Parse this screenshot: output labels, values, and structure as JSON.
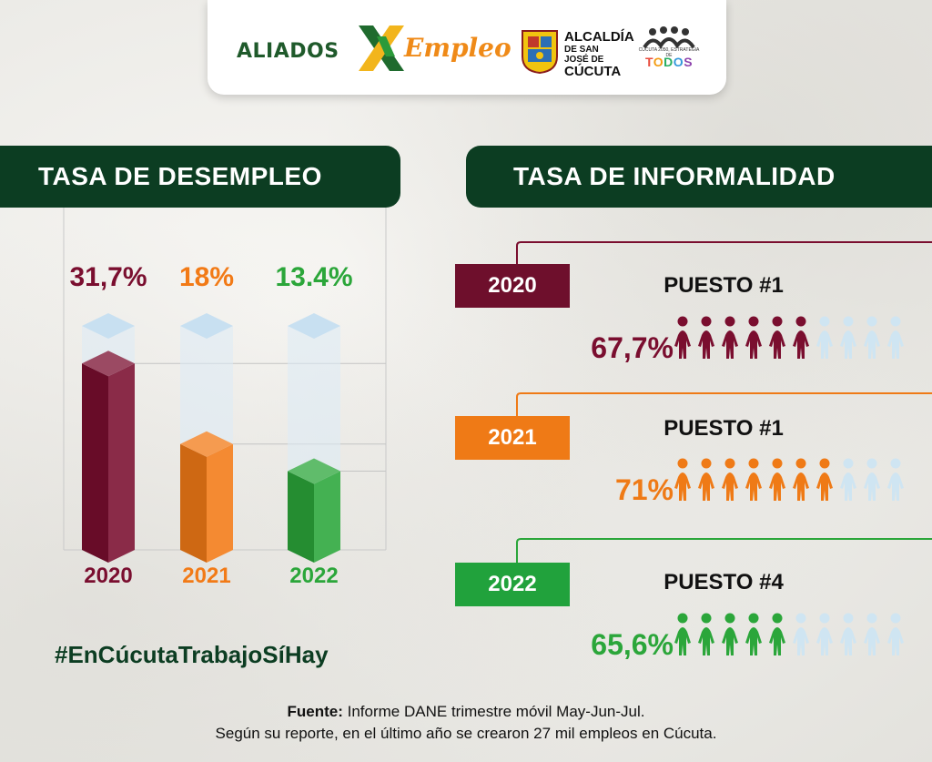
{
  "header": {
    "brand_left": "ALIADOS",
    "brand_right": "Empleo",
    "alcaldia_line1": "ALCALDÍA",
    "alcaldia_line2": "DE SAN JOSÉ DE",
    "alcaldia_line3": "CÚCUTA",
    "todos_tagline": "CÚCUTA 2050, ESTRATEGIA DE",
    "todos_word": "TODOS"
  },
  "left_banner": "TASA DE DESEMPLEO",
  "right_banner": "TASA DE INFORMALIDAD",
  "chart_data": {
    "type": "bar",
    "title": "TASA DE DESEMPLEO",
    "categories": [
      "2020",
      "2021",
      "2022"
    ],
    "values": [
      31.7,
      18,
      13.4
    ],
    "value_labels": [
      "31,7%",
      "18%",
      "13.4%"
    ],
    "colors": [
      "#7a0e2f",
      "#f27a16",
      "#2ba63a"
    ],
    "ylim": [
      0,
      35
    ],
    "xlabel": "",
    "ylabel": ""
  },
  "hashtag": "#EnCúcutaTrabajoSíHay",
  "informality": [
    {
      "year": "2020",
      "puesto": "PUESTO #1",
      "pct_label": "67,7%",
      "value": 67.7,
      "filled_people": 6,
      "total_people": 10,
      "color": "#7a0e2f"
    },
    {
      "year": "2021",
      "puesto": "PUESTO #1",
      "pct_label": "71%",
      "value": 71,
      "filled_people": 7,
      "total_people": 10,
      "color": "#ef7a16"
    },
    {
      "year": "2022",
      "puesto": "PUESTO #4",
      "pct_label": "65,6%",
      "value": 65.6,
      "filled_people": 5,
      "total_people": 10,
      "color": "#2ba63a"
    }
  ],
  "footer": {
    "source_label": "Fuente:",
    "source_text": " Informe DANE trimestre móvil May-Jun-Jul.",
    "note": "Según su reporte, en el último año se crearon 27 mil empleos en Cúcuta."
  }
}
